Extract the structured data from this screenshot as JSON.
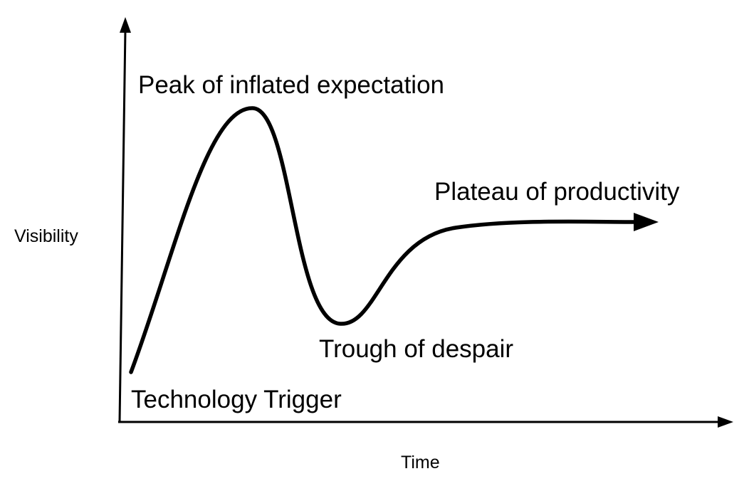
{
  "axes": {
    "y_label": "Visibility",
    "x_label": "Time"
  },
  "phases": [
    {
      "id": "technology-trigger",
      "label": "Technology Trigger"
    },
    {
      "id": "peak",
      "label": "Peak of inflated expectation"
    },
    {
      "id": "trough",
      "label": "Trough of despair"
    },
    {
      "id": "plateau",
      "label": "Plateau of productivity"
    }
  ],
  "colors": {
    "line": "#000000",
    "background": "#ffffff"
  }
}
